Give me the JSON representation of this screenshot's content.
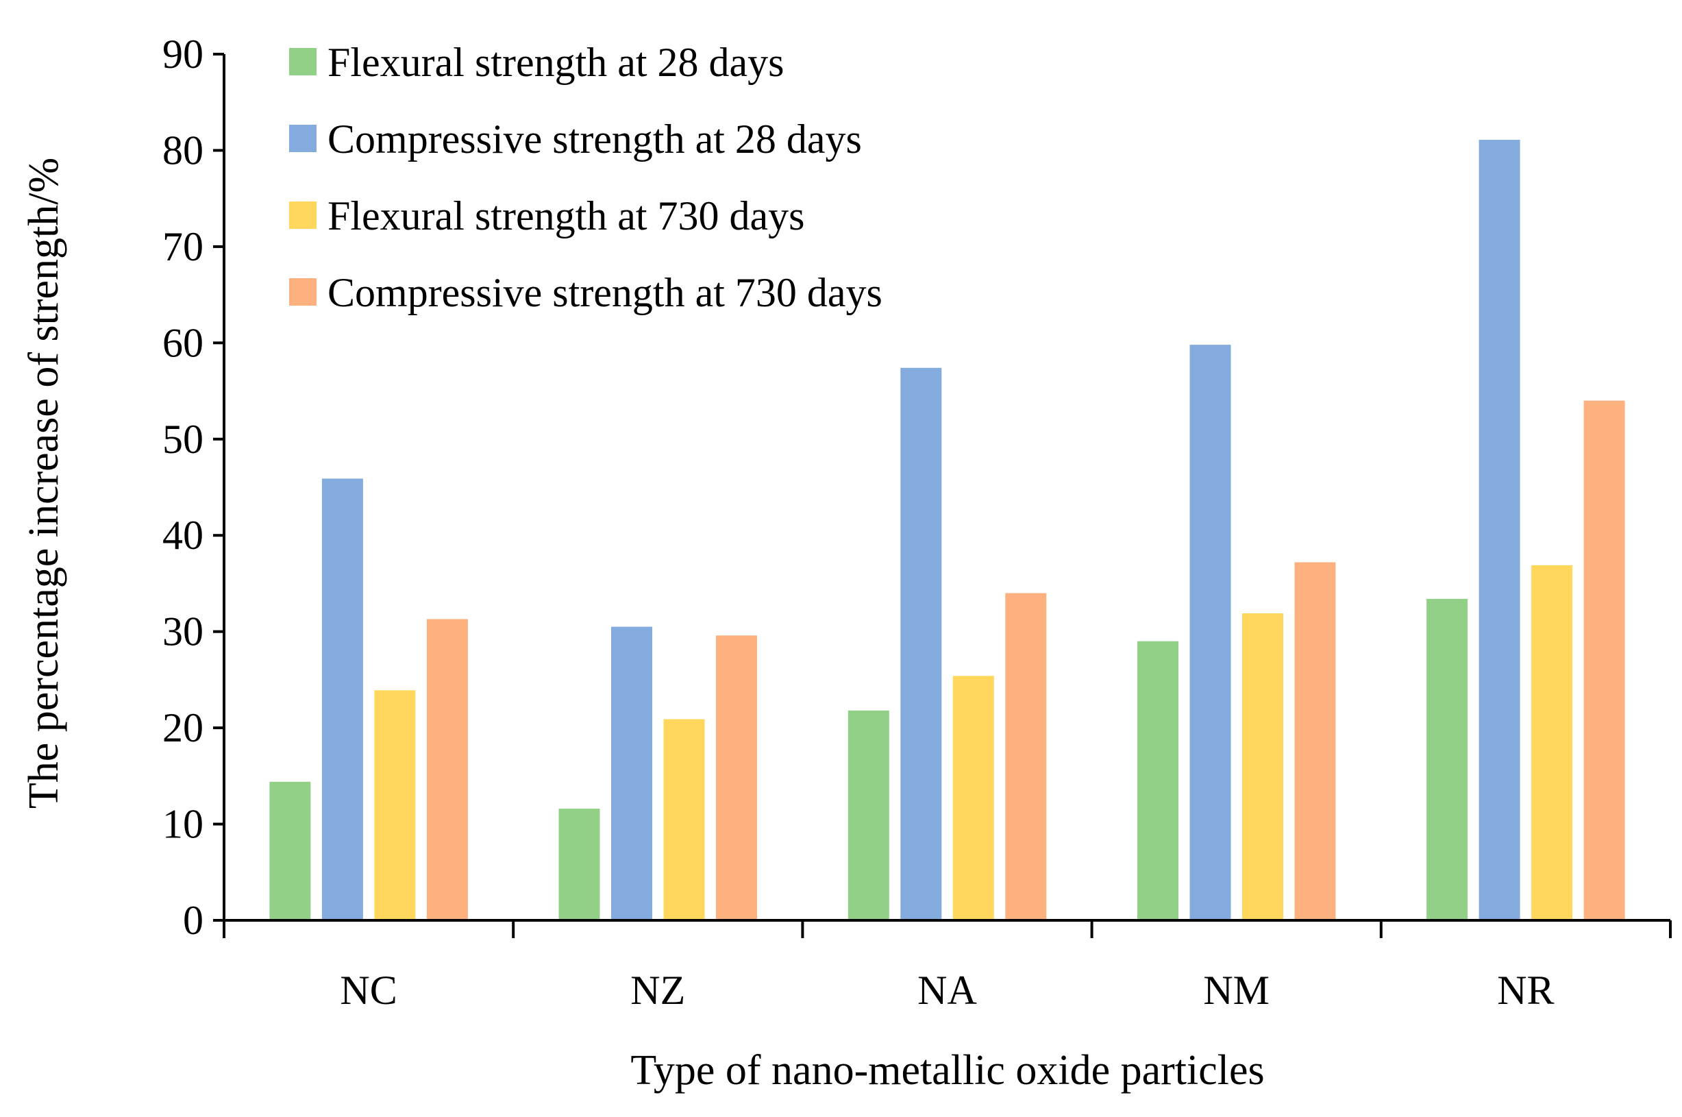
{
  "chart_data": {
    "type": "bar",
    "title": "",
    "xlabel": "Type of nano-metallic oxide particles",
    "ylabel": "The percentage increase of strength/%",
    "categories": [
      "NC",
      "NZ",
      "NA",
      "NM",
      "NR"
    ],
    "ylim": [
      0,
      90
    ],
    "yticks": [
      0,
      10,
      20,
      30,
      40,
      50,
      60,
      70,
      80,
      90
    ],
    "grid": false,
    "legend_position": "top-left",
    "series": [
      {
        "name": "Flexural strength at 28 days",
        "color": "#92d087",
        "values": [
          14.4,
          11.6,
          21.8,
          29.0,
          33.4
        ]
      },
      {
        "name": "Compressive strength at 28 days",
        "color": "#84abde",
        "values": [
          45.9,
          30.5,
          57.4,
          59.8,
          81.1
        ]
      },
      {
        "name": "Flexural strength at 730 days",
        "color": "#ffd75c",
        "values": [
          23.9,
          20.9,
          25.4,
          31.9,
          36.9
        ]
      },
      {
        "name": "Compressive strength at 730 days",
        "color": "#fcb17e",
        "values": [
          31.3,
          29.6,
          34.0,
          37.2,
          54.0
        ]
      }
    ]
  }
}
